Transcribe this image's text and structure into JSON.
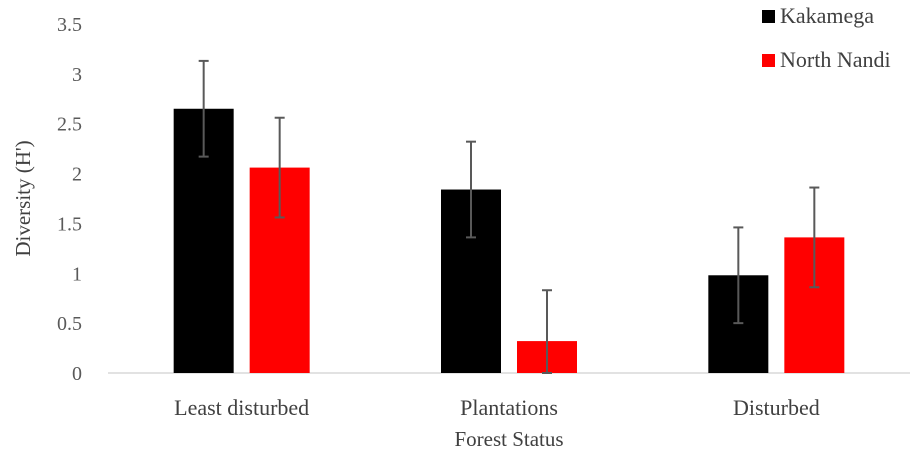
{
  "chart_data": {
    "type": "bar",
    "categories": [
      "Least disturbed",
      "Plantations",
      "Disturbed"
    ],
    "series": [
      {
        "name": "Kakamega",
        "color": "#000000",
        "values": [
          2.65,
          1.84,
          0.98
        ],
        "errors": [
          0.48,
          0.48,
          0.48
        ]
      },
      {
        "name": "North Nandi",
        "color": "#ff0000",
        "values": [
          2.06,
          0.32,
          1.36
        ],
        "errors": [
          0.5,
          0.51,
          0.5
        ]
      }
    ],
    "xlabel": "Forest Status",
    "ylabel": "Diversity (H')",
    "ylim": [
      0,
      3.5
    ],
    "yticks": [
      "0",
      "0.5",
      "1",
      "1.5",
      "2",
      "2.5",
      "3",
      "3.5"
    ],
    "error_bar_color": "#595959",
    "grid": false,
    "legend_position": "top-right"
  }
}
